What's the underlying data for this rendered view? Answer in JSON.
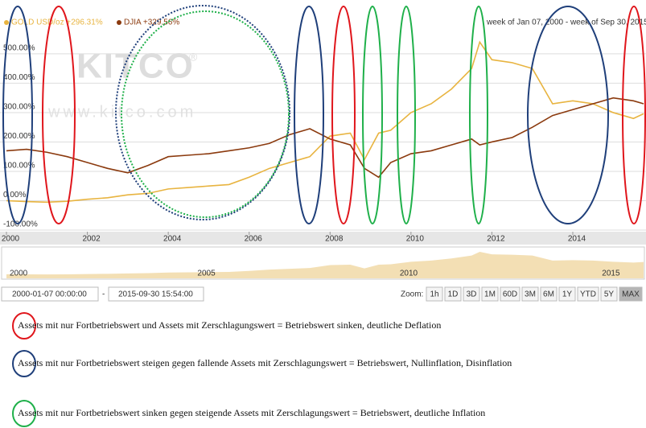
{
  "chart_data": {
    "type": "line",
    "range_label": "week of Jan 07, 2000 - week of Sep 30, 2015",
    "watermark": "KITCO",
    "watermark_mark": "®",
    "watermark_url": "www.kitco.com",
    "x": [
      2000,
      2000.5,
      2001,
      2001.5,
      2002,
      2002.5,
      2003,
      2003.5,
      2004,
      2004.5,
      2005,
      2005.5,
      2006,
      2006.5,
      2007,
      2007.5,
      2008,
      2008.5,
      2008.85,
      2009.2,
      2009.5,
      2010,
      2010.5,
      2011,
      2011.5,
      2011.7,
      2012,
      2012.5,
      2013,
      2013.5,
      2014,
      2014.5,
      2015,
      2015.5,
      2015.75
    ],
    "series": [
      {
        "name": "GOLD USD/oz +296.31%",
        "color": "#e8b440",
        "values": [
          0,
          -3,
          -5,
          -2,
          5,
          10,
          20,
          25,
          40,
          45,
          50,
          55,
          80,
          110,
          130,
          150,
          220,
          230,
          140,
          230,
          240,
          300,
          330,
          380,
          450,
          540,
          480,
          470,
          450,
          330,
          340,
          330,
          300,
          280,
          296
        ]
      },
      {
        "name": "DJIA +329.56%",
        "color": "#8b3a0e",
        "values": [
          170,
          175,
          165,
          150,
          130,
          110,
          95,
          120,
          150,
          155,
          160,
          170,
          180,
          195,
          225,
          245,
          210,
          190,
          110,
          80,
          130,
          160,
          170,
          190,
          210,
          190,
          200,
          215,
          250,
          290,
          310,
          330,
          350,
          340,
          330
        ]
      }
    ],
    "xlim": [
      2000,
      2015.75
    ],
    "xticks": [
      2000,
      2002,
      2004,
      2006,
      2008,
      2010,
      2012,
      2014
    ],
    "ylim": [
      -100,
      560
    ],
    "yticks": [
      {
        "value": -100,
        "label": "-100.00%"
      },
      {
        "value": 0,
        "label": "0.00%"
      },
      {
        "value": 100,
        "label": "100.00%"
      },
      {
        "value": 200,
        "label": "200.00%"
      },
      {
        "value": 300,
        "label": "300.00%"
      },
      {
        "value": 400,
        "label": "400.00%"
      },
      {
        "value": 500,
        "label": "500.00%"
      }
    ],
    "grid": true,
    "navigator": {
      "xticks": [
        2000,
        2005,
        2010,
        2015
      ],
      "color": "#f3dfb4"
    }
  },
  "controls": {
    "from": "2000-01-07 00:00:00",
    "separator": "-",
    "to": "2015-09-30 15:54:00",
    "zoom_label": "Zoom:",
    "buttons": [
      "1h",
      "1D",
      "3D",
      "1M",
      "60D",
      "3M",
      "6M",
      "1Y",
      "YTD",
      "5Y",
      "MAX"
    ]
  },
  "notes": [
    {
      "color": "#e0161c",
      "text": "Assets mit nur Fortbetriebswert und Assets mit Zerschlagungswert = Betriebswert sinken, deutliche Deflation"
    },
    {
      "color": "#1f3f7a",
      "text": "Assets mit nur Fortbetriebswert steigen gegen fallende  Assets mit Zerschlagungswert = Betriebswert, Nullinflation, Disinflation"
    },
    {
      "color": "#1fb04a",
      "text": "Assets mit nur Fortbetriebswert sinken gegen steigende Assets mit Zerschlagungswert = Betriebswert, deutliche Inflation"
    }
  ]
}
